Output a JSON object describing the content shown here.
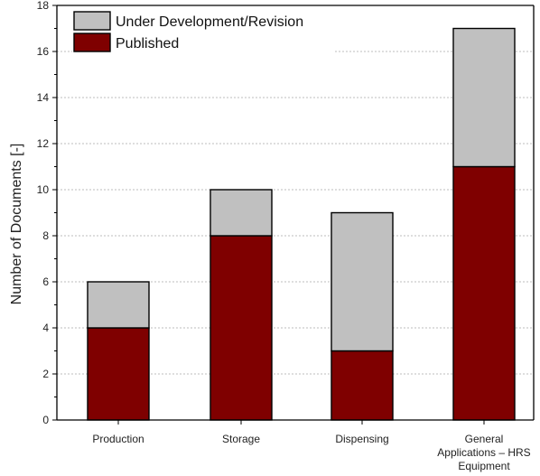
{
  "chart_data": {
    "type": "bar",
    "stacked": true,
    "categories": [
      [
        "Production"
      ],
      [
        "Storage"
      ],
      [
        "Dispensing"
      ],
      [
        "General",
        "Applications – HRS",
        "Equipment"
      ]
    ],
    "series": [
      {
        "name": "Published",
        "values": [
          4,
          8,
          3,
          11
        ],
        "color": "#7f0000"
      },
      {
        "name": "Under Development/Revision",
        "values": [
          2,
          2,
          6,
          6
        ],
        "color": "#c0c0c0"
      }
    ],
    "legend_order": [
      "Under Development/Revision",
      "Published"
    ],
    "legend_position": "top-left",
    "title": "",
    "xlabel": "",
    "ylabel": "Number of Documents [-]",
    "ylim": [
      0,
      18
    ],
    "yticks": [
      0,
      2,
      4,
      6,
      8,
      10,
      12,
      14,
      16,
      18
    ],
    "grid": true
  }
}
